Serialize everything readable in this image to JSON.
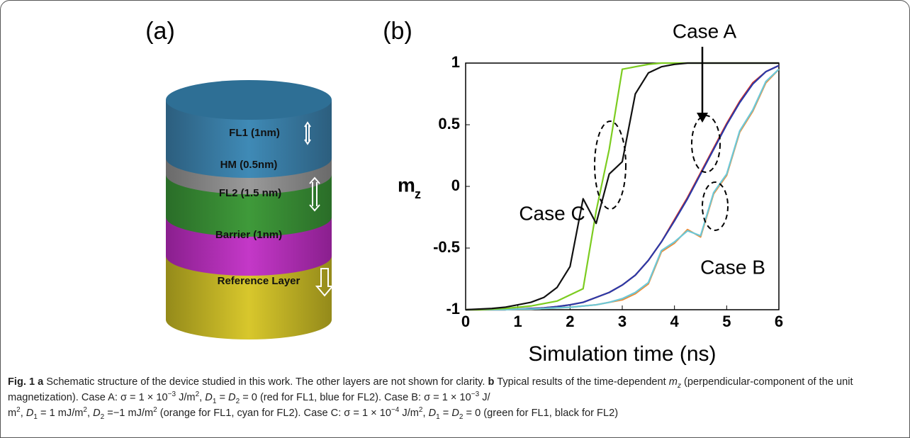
{
  "figure": {
    "panel_a": "(a)",
    "panel_b": "(b)",
    "layers": [
      "FL1 (1nm)",
      "HM (0.5nm)",
      "FL2 (1.5 nm)",
      "Barrier (1nm)",
      "Reference Layer"
    ],
    "caption": [
      "Fig. 1",
      "a",
      " Schematic structure of the device studied in this work. The other layers are not shown for clarity. ",
      "b",
      " Typical results of the time-dependent ",
      "m",
      "z",
      " (perpendicular-component of the unit magnetization). Case A: σ = 1 × 10",
      "−3",
      " J/m",
      "2",
      ", ",
      "D",
      "1",
      " = ",
      "D",
      "2",
      " = 0 (red for FL1, blue for FL2). Case B: σ = 1 × 10",
      "−3",
      " J/",
      "m",
      "2",
      ", ",
      "D",
      "1",
      " = 1 mJ/m",
      "2",
      ", ",
      "D",
      "2",
      " =−1 mJ/m",
      "2",
      " (orange for FL1, cyan for FL2). Case C: σ = 1 × 10",
      "−4",
      " J/m",
      "2",
      ", ",
      "D",
      "1",
      " = ",
      "D",
      "2",
      " = 0 (green for FL1, black for FL2)"
    ]
  },
  "chart_data": {
    "type": "line",
    "xlabel": "Simulation time (ns)",
    "ylabel": "m",
    "ylabel_sub": "z",
    "annotations": [
      "Case A",
      "Case C",
      "Case B"
    ],
    "x": [
      0,
      0.25,
      0.5,
      0.75,
      1,
      1.25,
      1.5,
      1.75,
      2,
      2.25,
      2.5,
      2.75,
      3,
      3.25,
      3.5,
      3.75,
      4,
      4.25,
      4.5,
      4.75,
      5,
      5.25,
      5.5,
      5.75,
      6
    ],
    "series": [
      {
        "color": "#e03020",
        "values": [
          -1,
          -1,
          -1,
          -1,
          -0.995,
          -0.99,
          -0.985,
          -0.975,
          -0.96,
          -0.94,
          -0.9,
          -0.86,
          -0.8,
          -0.72,
          -0.6,
          -0.45,
          -0.27,
          -0.09,
          0.11,
          0.31,
          0.51,
          0.69,
          0.84,
          0.93,
          0.98
        ]
      },
      {
        "color": "#2a3aa8",
        "values": [
          -1,
          -1,
          -1,
          -1,
          -0.995,
          -0.99,
          -0.985,
          -0.975,
          -0.96,
          -0.94,
          -0.9,
          -0.86,
          -0.8,
          -0.72,
          -0.6,
          -0.45,
          -0.28,
          -0.1,
          0.1,
          0.3,
          0.5,
          0.68,
          0.83,
          0.93,
          0.98
        ]
      },
      {
        "color": "#f08a30",
        "values": [
          -1,
          -1,
          -1,
          -1,
          -0.995,
          -0.995,
          -0.99,
          -0.985,
          -0.98,
          -0.97,
          -0.96,
          -0.94,
          -0.92,
          -0.87,
          -0.79,
          -0.53,
          -0.46,
          -0.35,
          -0.41,
          -0.06,
          0.09,
          0.44,
          0.61,
          0.84,
          0.95
        ]
      },
      {
        "color": "#6cc8d8",
        "values": [
          -1,
          -1,
          -1,
          -1,
          -0.995,
          -0.995,
          -0.99,
          -0.985,
          -0.98,
          -0.97,
          -0.96,
          -0.94,
          -0.91,
          -0.86,
          -0.78,
          -0.52,
          -0.45,
          -0.36,
          -0.4,
          -0.05,
          0.1,
          0.45,
          0.62,
          0.85,
          0.95
        ]
      },
      {
        "color": "#7ccc20",
        "values": [
          -1,
          -1,
          -0.995,
          -0.99,
          -0.98,
          -0.97,
          -0.95,
          -0.93,
          -0.88,
          -0.83,
          -0.2,
          0.3,
          0.95,
          0.97,
          0.99,
          1,
          1,
          1,
          1,
          1,
          1,
          1,
          1,
          1,
          1
        ]
      },
      {
        "color": "#111111",
        "values": [
          -1,
          -0.995,
          -0.99,
          -0.98,
          -0.96,
          -0.94,
          -0.9,
          -0.82,
          -0.65,
          -0.1,
          -0.3,
          0.1,
          0.2,
          0.75,
          0.92,
          0.97,
          0.99,
          1,
          1,
          1,
          1,
          1,
          1,
          1,
          1
        ]
      }
    ],
    "xlim": [
      0,
      6
    ],
    "ylim": [
      -1,
      1
    ],
    "xticks": [
      0,
      1,
      2,
      3,
      4,
      5,
      6
    ],
    "yticks": [
      -1,
      -0.5,
      0,
      0.5,
      1
    ]
  }
}
